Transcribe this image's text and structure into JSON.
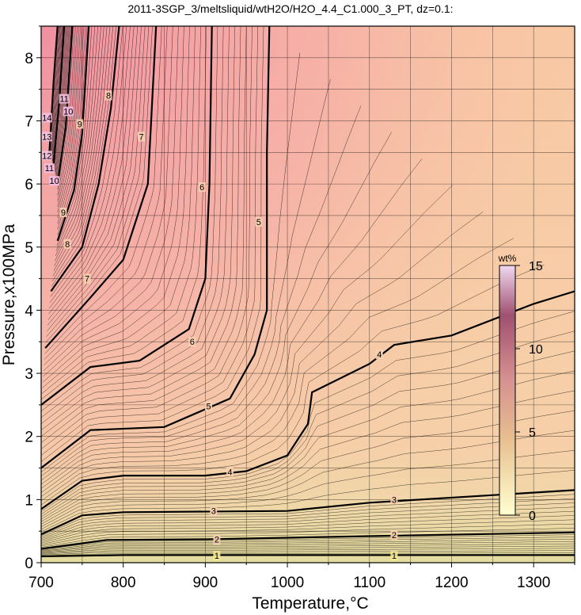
{
  "chart_data": {
    "type": "contour",
    "title": "2011-3SGP_3/meltsliquid/wtH2O/H2O_4.4_C1.000_3_PT, dz=0.1:",
    "xlabel": "Temperature,°C",
    "ylabel": "Pressure,x100MPa",
    "xlim": [
      700,
      1350
    ],
    "ylim": [
      0,
      8.5
    ],
    "xticks": [
      700,
      800,
      900,
      1000,
      1100,
      1200,
      1300
    ],
    "yticks": [
      0,
      1,
      2,
      3,
      4,
      5,
      6,
      7,
      8
    ],
    "grid": true,
    "z_quantity": "water content of melt",
    "colorbar": {
      "title": "wt%",
      "range": [
        0,
        15
      ],
      "ticks": [
        0,
        5,
        10,
        15
      ],
      "colors": [
        "#ffffd0",
        "#e8c090",
        "#d59090",
        "#a05070",
        "#401028"
      ]
    },
    "background_colors": {
      "low_water": "#e8e0a8",
      "mid_water": "#f6cfa8",
      "high_water": "#f0a0a8",
      "very_high_water": "#d88098"
    },
    "labeled_contours": [
      {
        "level": 1,
        "points": [
          [
            700,
            0.1
          ],
          [
            800,
            0.12
          ],
          [
            1000,
            0.12
          ],
          [
            1350,
            0.12
          ]
        ]
      },
      {
        "level": 2,
        "points": [
          [
            700,
            0.22
          ],
          [
            780,
            0.36
          ],
          [
            900,
            0.37
          ],
          [
            1100,
            0.42
          ],
          [
            1350,
            0.48
          ]
        ]
      },
      {
        "level": 3,
        "points": [
          [
            700,
            0.45
          ],
          [
            750,
            0.75
          ],
          [
            800,
            0.8
          ],
          [
            1000,
            0.82
          ],
          [
            1100,
            0.95
          ],
          [
            1350,
            1.15
          ]
        ]
      },
      {
        "level": 4,
        "points": [
          [
            700,
            0.85
          ],
          [
            750,
            1.3
          ],
          [
            800,
            1.38
          ],
          [
            900,
            1.38
          ],
          [
            950,
            1.45
          ],
          [
            1000,
            1.7
          ],
          [
            1025,
            2.2
          ],
          [
            1030,
            2.7
          ],
          [
            1100,
            3.15
          ],
          [
            1130,
            3.45
          ],
          [
            1200,
            3.6
          ],
          [
            1300,
            4.1
          ],
          [
            1350,
            4.3
          ]
        ]
      },
      {
        "level": 5,
        "points": [
          [
            700,
            1.5
          ],
          [
            760,
            2.1
          ],
          [
            850,
            2.15
          ],
          [
            930,
            2.6
          ],
          [
            960,
            3.3
          ],
          [
            975,
            4.0
          ],
          [
            975,
            5.0
          ],
          [
            975,
            6.5
          ],
          [
            978,
            8.5
          ]
        ]
      },
      {
        "level": 6,
        "points": [
          [
            700,
            2.5
          ],
          [
            760,
            3.1
          ],
          [
            820,
            3.2
          ],
          [
            880,
            3.7
          ],
          [
            900,
            4.5
          ],
          [
            905,
            6.0
          ],
          [
            908,
            8.5
          ]
        ]
      },
      {
        "level": 7,
        "points": [
          [
            705,
            3.4
          ],
          [
            760,
            4.2
          ],
          [
            800,
            4.8
          ],
          [
            830,
            6.0
          ],
          [
            840,
            8.5
          ]
        ]
      },
      {
        "level": 8,
        "points": [
          [
            712,
            4.3
          ],
          [
            750,
            5.0
          ],
          [
            770,
            6.0
          ],
          [
            785,
            7.2
          ],
          [
            795,
            8.5
          ]
        ]
      },
      {
        "level": 9,
        "points": [
          [
            720,
            5.1
          ],
          [
            740,
            5.9
          ],
          [
            750,
            6.8
          ],
          [
            758,
            8.5
          ]
        ]
      },
      {
        "level": 10,
        "points": [
          [
            720,
            6.0
          ],
          [
            730,
            6.9
          ],
          [
            738,
            8.5
          ]
        ]
      },
      {
        "level": 11,
        "points": [
          [
            715,
            6.3
          ],
          [
            722,
            7.3
          ],
          [
            728,
            8.5
          ]
        ]
      },
      {
        "level": 12,
        "points": [
          [
            710,
            6.5
          ],
          [
            715,
            7.6
          ],
          [
            720,
            8.5
          ]
        ]
      }
    ],
    "contour_labels": [
      {
        "text": "1",
        "x": 914,
        "y": 0.11
      },
      {
        "text": "1",
        "x": 1130,
        "y": 0.11
      },
      {
        "text": "2",
        "x": 914,
        "y": 0.37
      },
      {
        "text": "2",
        "x": 1130,
        "y": 0.44
      },
      {
        "text": "3",
        "x": 910,
        "y": 0.82
      },
      {
        "text": "3",
        "x": 1130,
        "y": 1.0
      },
      {
        "text": "4",
        "x": 930,
        "y": 1.44
      },
      {
        "text": "4",
        "x": 1112,
        "y": 3.3
      },
      {
        "text": "5",
        "x": 904,
        "y": 2.48
      },
      {
        "text": "5",
        "x": 965,
        "y": 5.4
      },
      {
        "text": "6",
        "x": 884,
        "y": 3.5
      },
      {
        "text": "6",
        "x": 896,
        "y": 5.95
      },
      {
        "text": "7",
        "x": 756,
        "y": 4.5
      },
      {
        "text": "7",
        "x": 822,
        "y": 6.75
      },
      {
        "text": "8",
        "x": 732,
        "y": 5.05
      },
      {
        "text": "8",
        "x": 782,
        "y": 7.4
      },
      {
        "text": "9",
        "x": 727,
        "y": 5.55
      },
      {
        "text": "9",
        "x": 747,
        "y": 6.95
      },
      {
        "text": "10",
        "x": 716,
        "y": 6.05
      },
      {
        "text": "10",
        "x": 733,
        "y": 7.15
      },
      {
        "text": "11",
        "x": 710,
        "y": 6.25
      },
      {
        "text": "11",
        "x": 728,
        "y": 7.35
      },
      {
        "text": "12",
        "x": 707,
        "y": 6.45
      },
      {
        "text": "13",
        "x": 707,
        "y": 6.75
      },
      {
        "text": "14",
        "x": 707,
        "y": 7.05
      }
    ]
  }
}
